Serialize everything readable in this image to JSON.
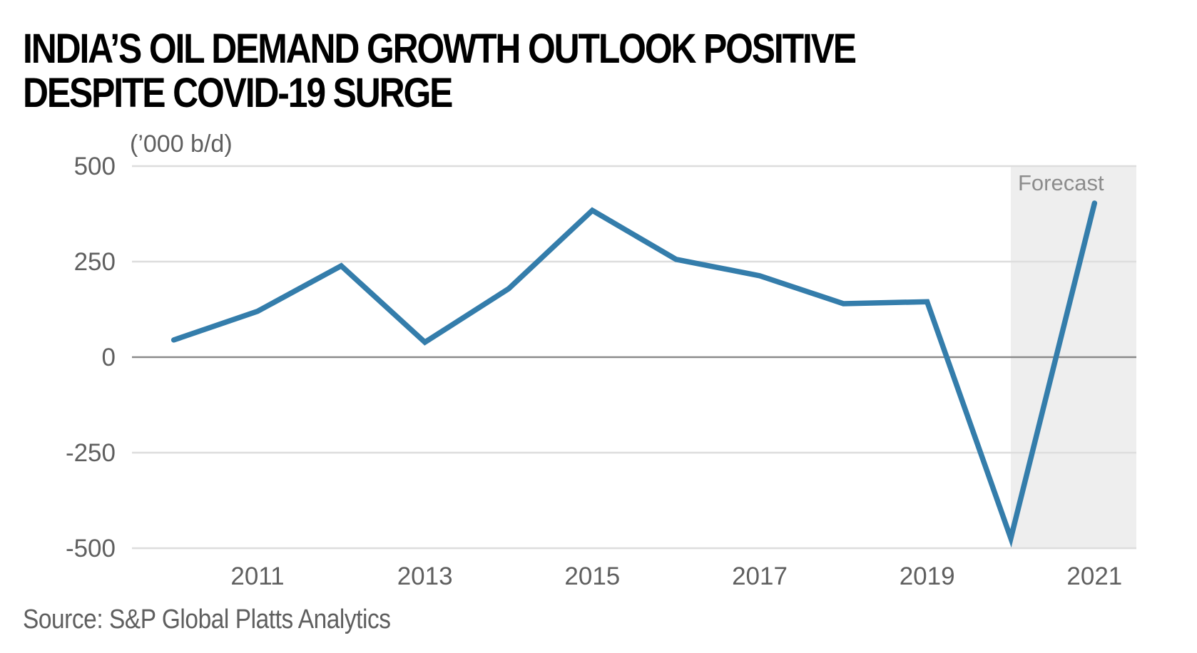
{
  "chart_data": {
    "type": "line",
    "title": "INDIA’S OIL DEMAND GROWTH OUTLOOK POSITIVE DESPITE COVID-19 SURGE",
    "title_lines": [
      "INDIA’S OIL DEMAND GROWTH OUTLOOK POSITIVE",
      "DESPITE COVID-19 SURGE"
    ],
    "ylabel": "(’000 b/d)",
    "xlabel": "",
    "x": [
      2010,
      2011,
      2012,
      2013,
      2014,
      2015,
      2016,
      2017,
      2018,
      2019,
      2020,
      2021
    ],
    "series": [
      {
        "name": "India oil demand growth",
        "color": "#347dab",
        "values": [
          45,
          120,
          239,
          39,
          179,
          384,
          256,
          213,
          140,
          145,
          -474,
          403
        ]
      }
    ],
    "ylim": [
      -500,
      500
    ],
    "xlim": [
      2009.5,
      2021.5
    ],
    "yticks": [
      500,
      250,
      0,
      -250,
      -500
    ],
    "ytick_labels": [
      "500",
      "250",
      "0",
      "-250",
      "-500"
    ],
    "xticks": [
      2011,
      2013,
      2015,
      2017,
      2019,
      2021
    ],
    "xtick_labels": [
      "2011",
      "2013",
      "2015",
      "2017",
      "2019",
      "2021"
    ],
    "grid": true,
    "annotations": [
      {
        "type": "shaded-region",
        "label": "Forecast",
        "x_from": 2020,
        "x_to": 2021.5,
        "color": "#eeeeee"
      }
    ],
    "source": "Source: S&P Global Platts Analytics"
  },
  "colors": {
    "line": "#347dab",
    "grid": "#dddddd",
    "zero_line": "#8a8a8a",
    "forecast_bg": "#eeeeee",
    "tick_text": "#5f5f5f",
    "title": "#000000"
  }
}
